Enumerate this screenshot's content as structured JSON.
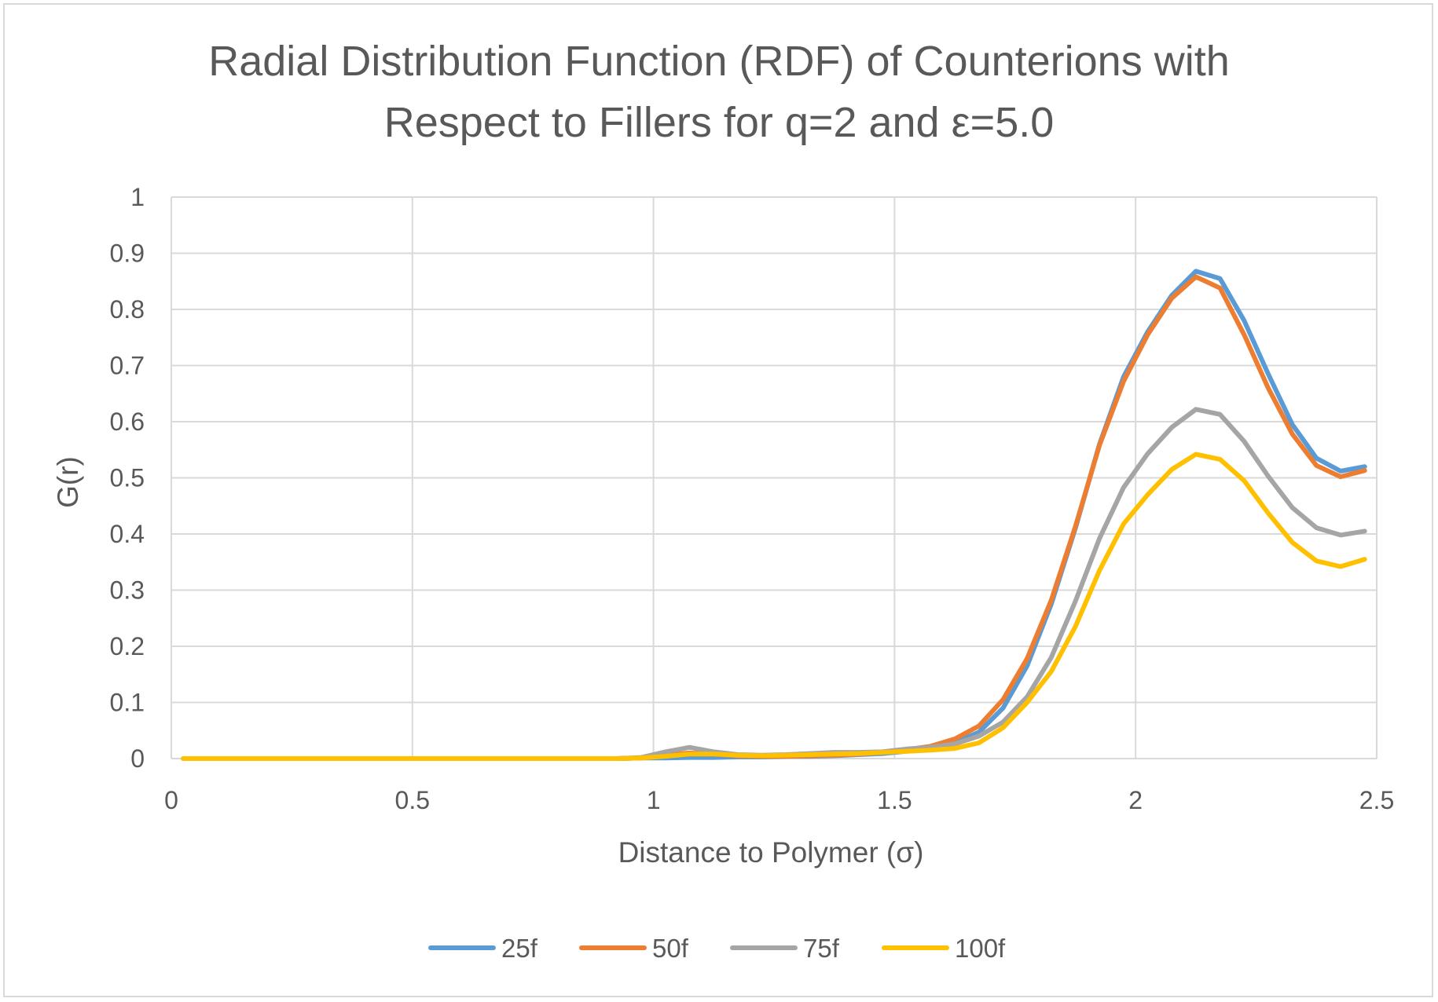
{
  "chart_data": {
    "type": "line",
    "title": "Radial Distribution Function (RDF) of Counterions with Respect to Fillers for q=2 and ε=5.0",
    "title_lines": [
      "Radial Distribution Function (RDF) of Counterions with",
      "Respect to Fillers for q=2 and ε=5.0"
    ],
    "xlabel": "Distance to Polymer (σ)",
    "ylabel": "G(r)",
    "xlim": [
      0,
      2.5
    ],
    "ylim": [
      0,
      1
    ],
    "x_ticks": [
      "0",
      "0.5",
      "1",
      "1.5",
      "2",
      "2.5"
    ],
    "y_ticks": [
      "0",
      "0.1",
      "0.2",
      "0.3",
      "0.4",
      "0.5",
      "0.6",
      "0.7",
      "0.8",
      "0.9",
      "1"
    ],
    "grid": true,
    "legend_position": "bottom",
    "x": [
      0.025,
      0.075,
      0.125,
      0.175,
      0.225,
      0.275,
      0.325,
      0.375,
      0.425,
      0.475,
      0.525,
      0.575,
      0.625,
      0.675,
      0.725,
      0.775,
      0.825,
      0.875,
      0.925,
      0.975,
      1.025,
      1.075,
      1.125,
      1.175,
      1.225,
      1.275,
      1.325,
      1.375,
      1.425,
      1.475,
      1.525,
      1.575,
      1.625,
      1.675,
      1.725,
      1.775,
      1.825,
      1.875,
      1.925,
      1.975,
      2.025,
      2.075,
      2.125,
      2.175,
      2.225,
      2.275,
      2.325,
      2.375,
      2.425,
      2.475
    ],
    "series": [
      {
        "name": "25f",
        "color": "#5b9bd5",
        "values": [
          0,
          0,
          0,
          0,
          0,
          0,
          0,
          0,
          0,
          0,
          0,
          0,
          0,
          0,
          0,
          0,
          0,
          0,
          0,
          0.001,
          0.001,
          0.002,
          0.002,
          0.003,
          0.003,
          0.004,
          0.004,
          0.005,
          0.007,
          0.009,
          0.013,
          0.018,
          0.028,
          0.047,
          0.09,
          0.165,
          0.275,
          0.41,
          0.56,
          0.68,
          0.76,
          0.825,
          0.868,
          0.855,
          0.78,
          0.685,
          0.595,
          0.535,
          0.512,
          0.52
        ]
      },
      {
        "name": "50f",
        "color": "#ed7d31",
        "values": [
          0,
          0,
          0,
          0,
          0,
          0,
          0,
          0,
          0,
          0,
          0,
          0,
          0,
          0,
          0,
          0,
          0,
          0,
          0,
          0.001,
          0.006,
          0.01,
          0.008,
          0.005,
          0.004,
          0.004,
          0.005,
          0.006,
          0.008,
          0.011,
          0.016,
          0.022,
          0.035,
          0.058,
          0.105,
          0.178,
          0.282,
          0.413,
          0.558,
          0.672,
          0.755,
          0.82,
          0.858,
          0.838,
          0.755,
          0.66,
          0.578,
          0.522,
          0.502,
          0.513
        ]
      },
      {
        "name": "75f",
        "color": "#a5a5a5",
        "values": [
          0,
          0,
          0,
          0,
          0,
          0,
          0,
          0,
          0,
          0,
          0,
          0,
          0,
          0,
          0,
          0,
          0,
          0,
          0,
          0.002,
          0.012,
          0.02,
          0.012,
          0.007,
          0.006,
          0.007,
          0.009,
          0.011,
          0.011,
          0.012,
          0.017,
          0.02,
          0.026,
          0.04,
          0.065,
          0.11,
          0.18,
          0.28,
          0.392,
          0.483,
          0.543,
          0.59,
          0.622,
          0.613,
          0.565,
          0.503,
          0.447,
          0.411,
          0.398,
          0.405
        ]
      },
      {
        "name": "100f",
        "color": "#ffc000",
        "values": [
          0,
          0,
          0,
          0,
          0,
          0,
          0,
          0,
          0,
          0,
          0,
          0,
          0,
          0,
          0,
          0,
          0,
          0,
          0,
          0.001,
          0.004,
          0.008,
          0.008,
          0.006,
          0.005,
          0.006,
          0.007,
          0.008,
          0.009,
          0.011,
          0.013,
          0.015,
          0.018,
          0.028,
          0.055,
          0.1,
          0.155,
          0.235,
          0.335,
          0.418,
          0.47,
          0.515,
          0.542,
          0.533,
          0.495,
          0.437,
          0.385,
          0.352,
          0.342,
          0.355
        ]
      }
    ]
  }
}
